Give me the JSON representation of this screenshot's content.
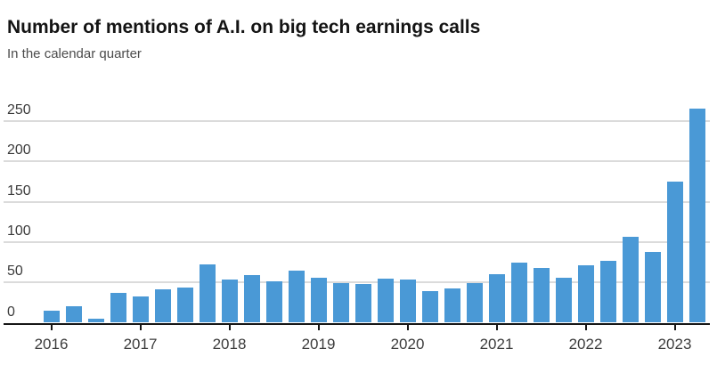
{
  "chart_data": {
    "type": "bar",
    "title": "Number of mentions of A.I. on big tech earnings calls",
    "subtitle": "In the calendar quarter",
    "categories": [
      "Q1 2016",
      "Q2 2016",
      "Q3 2016",
      "Q4 2016",
      "Q1 2017",
      "Q2 2017",
      "Q3 2017",
      "Q4 2017",
      "Q1 2018",
      "Q2 2018",
      "Q3 2018",
      "Q4 2018",
      "Q1 2019",
      "Q2 2019",
      "Q3 2019",
      "Q4 2019",
      "Q1 2020",
      "Q2 2020",
      "Q3 2020",
      "Q4 2020",
      "Q1 2021",
      "Q2 2021",
      "Q3 2021",
      "Q4 2021",
      "Q1 2022",
      "Q2 2022",
      "Q3 2022",
      "Q4 2022",
      "Q1 2023",
      "Q2 2023"
    ],
    "values": [
      15,
      20,
      5,
      37,
      33,
      41,
      44,
      72,
      54,
      59,
      51,
      65,
      56,
      49,
      48,
      55,
      54,
      39,
      42,
      49,
      60,
      74,
      68,
      56,
      71,
      77,
      106,
      88,
      175,
      265
    ],
    "x_tick_labels": [
      "2016",
      "2017",
      "2018",
      "2019",
      "2020",
      "2021",
      "2022",
      "2023"
    ],
    "y_ticks": [
      0,
      50,
      100,
      150,
      200,
      250
    ],
    "ylim": [
      0,
      275
    ],
    "xlabel": "",
    "ylabel": "",
    "grid": "horizontal gridlines on",
    "legend": "none",
    "colors": {
      "bar": "#4a99d6",
      "axis": "#161616",
      "gridline": "#dbdbdb",
      "tick_label": "#3c3c3c",
      "title": "#141414",
      "subtitle": "#4c4c4c",
      "background": "#ffffff"
    }
  }
}
